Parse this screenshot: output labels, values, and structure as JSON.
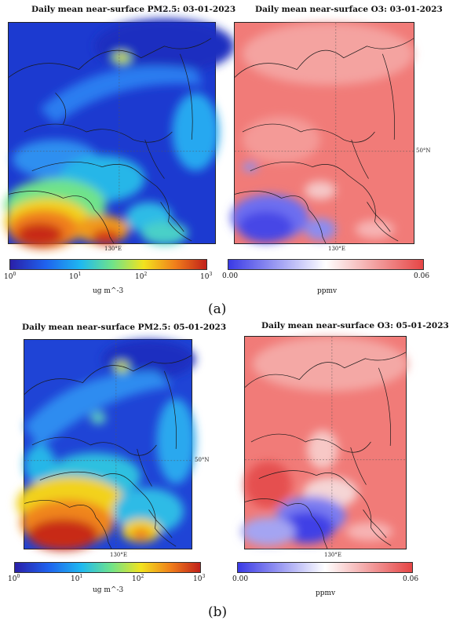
{
  "figure_a": {
    "label": "(a)",
    "pm25": {
      "title": "Daily mean near-surface PM2.5: 03-01-2023",
      "lon_label": "130°E",
      "colorbar": {
        "base": "10",
        "exponents": [
          "0",
          "1",
          "2",
          "3"
        ],
        "unit": "ug m^-3"
      }
    },
    "o3": {
      "title": "Daily mean near-surface O3: 03-01-2023",
      "lon_label": "130°E",
      "lat_label": "50°N",
      "colorbar": {
        "min": "0.00",
        "max": "0.06",
        "unit": "ppmv"
      }
    }
  },
  "figure_b": {
    "label": "(b)",
    "pm25": {
      "title": "Daily mean near-surface PM2.5: 05-01-2023",
      "lon_label": "130°E",
      "lat_label": "50°N",
      "colorbar": {
        "base": "10",
        "exponents": [
          "0",
          "1",
          "2",
          "3"
        ],
        "unit": "ug m^-3"
      }
    },
    "o3": {
      "title": "Daily mean near-surface O3: 05-01-2023",
      "lon_label": "130°E",
      "colorbar": {
        "min": "0.00",
        "max": "0.06",
        "unit": "ppmv"
      }
    }
  },
  "colors": {
    "pm25_scale": [
      "#2a1fa8",
      "#1f62ee",
      "#1fb9f0",
      "#6fe38a",
      "#f2e31e",
      "#f07f1b",
      "#c1201a"
    ],
    "o3_scale": [
      "#3a3ae6",
      "#ffffff",
      "#e64545"
    ]
  }
}
